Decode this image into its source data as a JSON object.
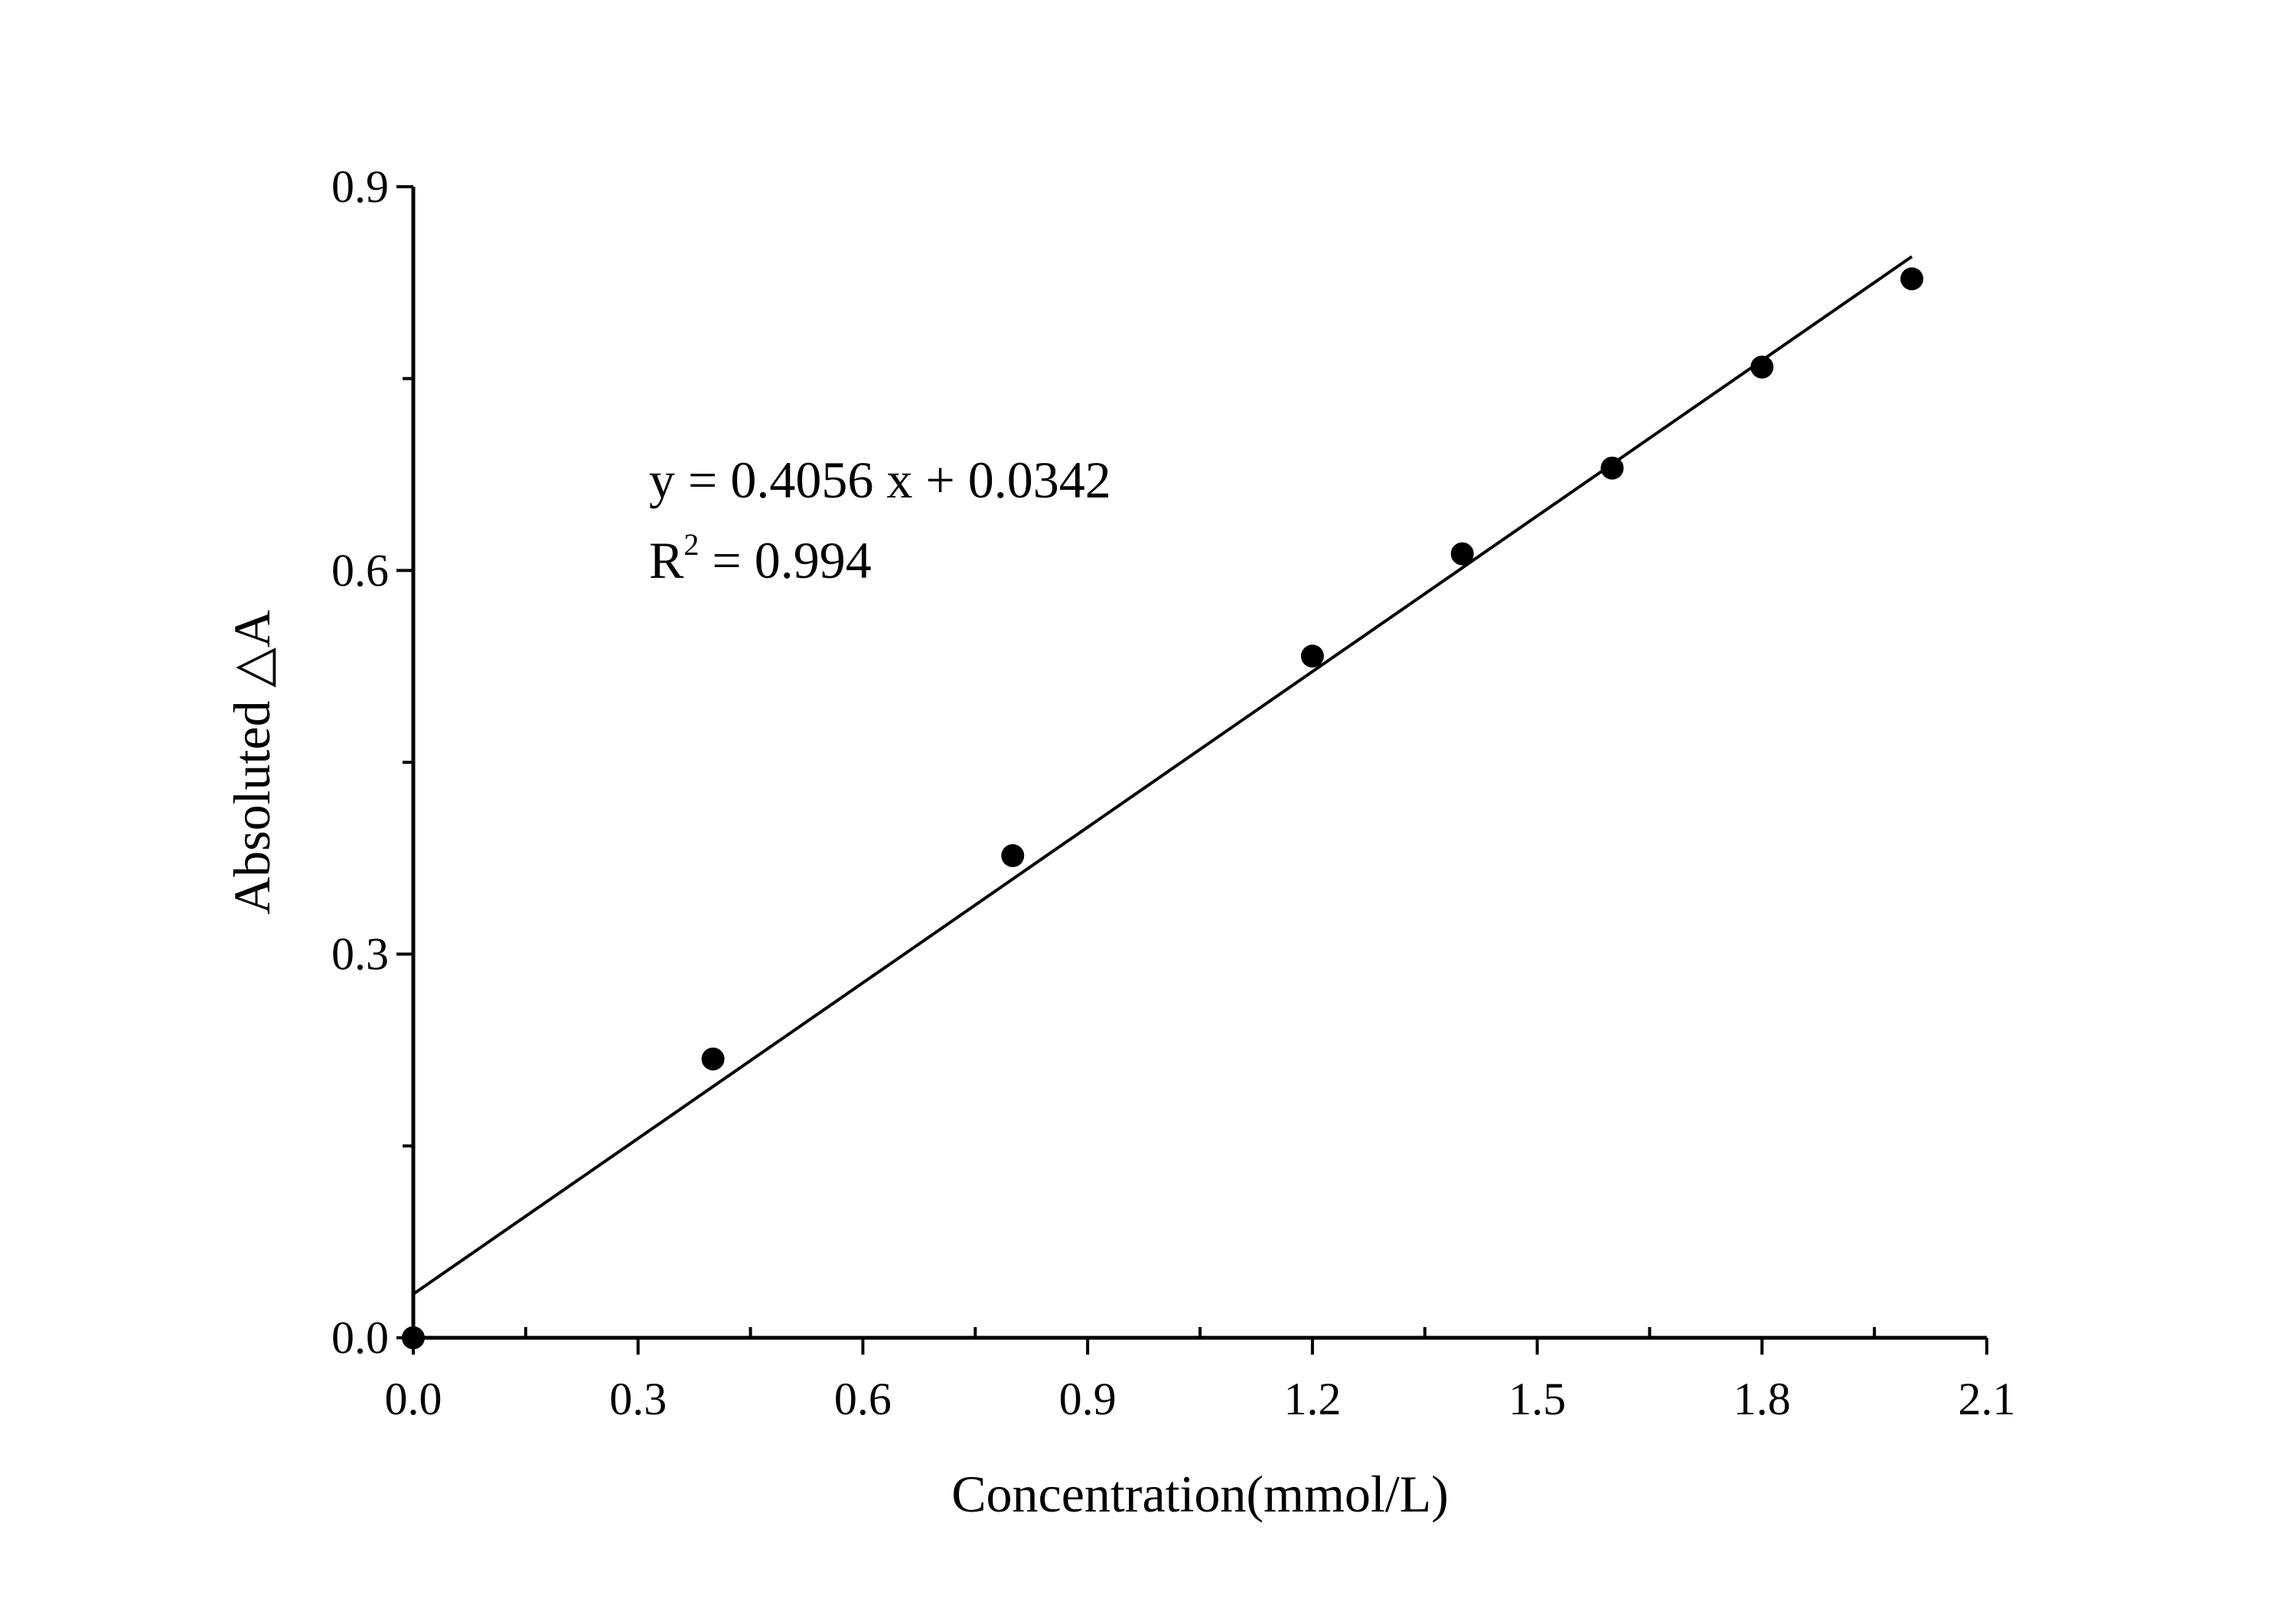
{
  "chart_data": {
    "type": "scatter",
    "title": "",
    "xlabel": "Concentration(mmol/L)",
    "ylabel": "Absoluted △A",
    "xlim": [
      0,
      2.1
    ],
    "ylim": [
      0,
      0.9
    ],
    "xticks": [
      "0.0",
      "0.3",
      "0.6",
      "0.9",
      "1.2",
      "1.5",
      "1.8",
      "2.1"
    ],
    "yticks": [
      "0.0",
      "0.3",
      "0.6",
      "0.9"
    ],
    "grid": false,
    "points": [
      {
        "x": 0.0,
        "y": 0.0
      },
      {
        "x": 0.4,
        "y": 0.218
      },
      {
        "x": 0.8,
        "y": 0.377
      },
      {
        "x": 1.2,
        "y": 0.533
      },
      {
        "x": 1.4,
        "y": 0.613
      },
      {
        "x": 1.6,
        "y": 0.68
      },
      {
        "x": 1.8,
        "y": 0.759
      },
      {
        "x": 2.0,
        "y": 0.828
      }
    ],
    "fit": {
      "slope": 0.4056,
      "intercept": 0.0342,
      "x_range": [
        0,
        2.0
      ]
    },
    "annotation": {
      "equation": "y = 0.4056 x + 0.0342",
      "r2_prefix": "R",
      "r2_sup": "2",
      "r2_value": " = 0.994"
    },
    "colors": {
      "marker": "#000000",
      "line": "#000000"
    }
  }
}
